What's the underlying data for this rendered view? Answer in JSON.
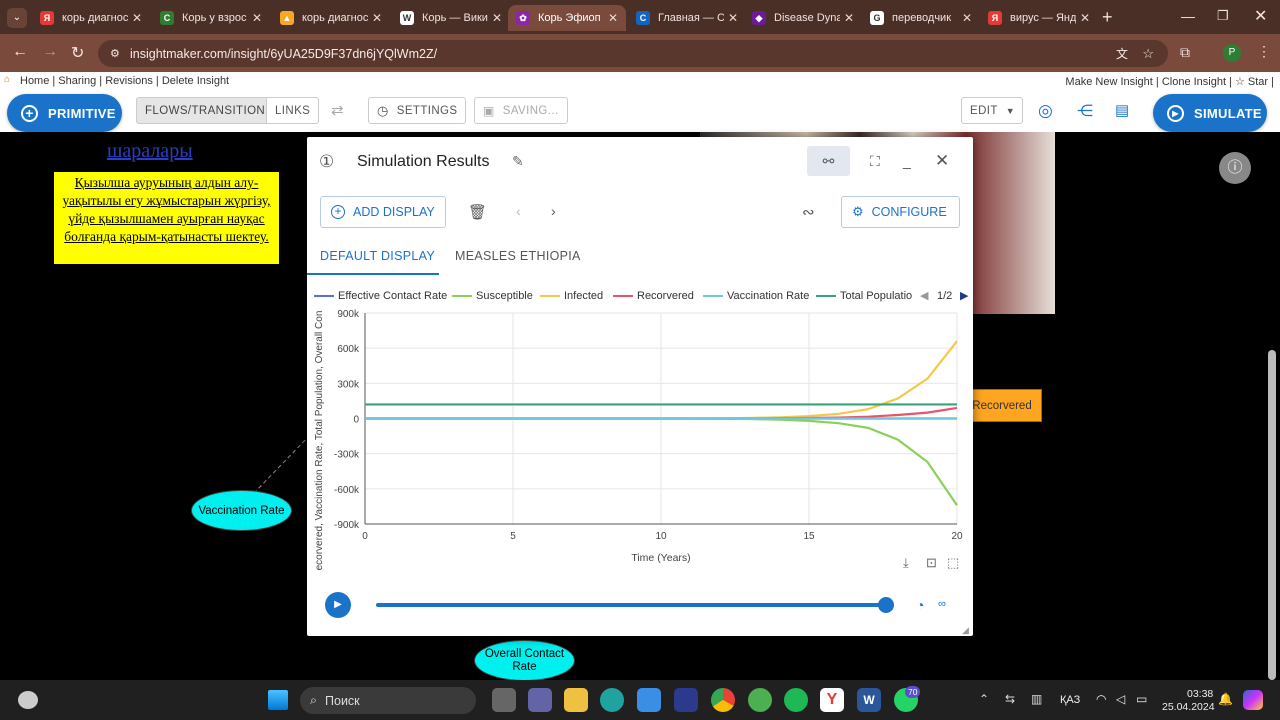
{
  "browser": {
    "tabs": [
      {
        "title": "корь диагнос",
        "fav_color": "#e53935",
        "fav_glyph": "Я"
      },
      {
        "title": "Корь у взрос",
        "fav_color": "#2e7d32",
        "fav_glyph": "C"
      },
      {
        "title": "корь диагнос",
        "fav_color": "#f9a825",
        "fav_glyph": "▲"
      },
      {
        "title": "Корь — Вики",
        "fav_color": "#ffffff",
        "fav_glyph": "W"
      },
      {
        "title": "Корь Эфиоп",
        "fav_color": "#8e24aa",
        "fav_glyph": "✿"
      },
      {
        "title": "Главная — С",
        "fav_color": "#1565c0",
        "fav_glyph": "C"
      },
      {
        "title": "Disease Dyna",
        "fav_color": "#6a1b9a",
        "fav_glyph": "◆"
      },
      {
        "title": "переводчик",
        "fav_color": "#ffffff",
        "fav_glyph": "G"
      },
      {
        "title": "вирус — Янд",
        "fav_color": "#e53935",
        "fav_glyph": "Я"
      }
    ],
    "url": "insightmaker.com/insight/6yUA25D9F37dn6jYQlWm2Z/",
    "profile_initial": "P"
  },
  "app": {
    "links_left": "Home | Sharing | Revisions | Delete Insight",
    "links_right": "Make New Insight | Clone Insight | ☆ Star |",
    "primitive_label": "PRIMITIVE",
    "flows_label": "FLOWS/TRANSITIONS",
    "links_label": "LINKS",
    "settings_label": "SETTINGS",
    "saving_label": "SAVING...",
    "edit_label": "EDIT",
    "simulate_label": "SIMULATE"
  },
  "canvas": {
    "heading_partial": "шаралары",
    "yellow_note": "Қызылша ауруының алдын алу-уақытылы егу жұмыстарын жүргізу, үйде қызылшамен ауырған науқас болғанда қарым-қатынасты шектеу.",
    "vaccination_node": "Vaccination Rate",
    "overall_node": "Overall Contact Rate",
    "recovered_node": "Recorvered"
  },
  "dialog": {
    "title": "Simulation Results",
    "add_display": "ADD DISPLAY",
    "configure": "CONFIGURE",
    "tabs": [
      "DEFAULT DISPLAY",
      "MEASLES ETHIOPIA"
    ],
    "legend_page": "1/2",
    "speed_label": "∞"
  },
  "chart_data": {
    "type": "line",
    "xlabel": "Time (Years)",
    "ylabel": "ecorvered, Vaccination Rate, Total Population, Overall Con",
    "xlim": [
      0,
      20
    ],
    "ylim": [
      -900000,
      900000
    ],
    "x_ticks": [
      "0",
      "5",
      "10",
      "15",
      "20"
    ],
    "y_ticks": [
      "900k",
      "600k",
      "300k",
      "0",
      "-300k",
      "-600k",
      "-900k"
    ],
    "x": [
      0,
      2,
      4,
      6,
      8,
      10,
      12,
      13,
      14,
      15,
      16,
      17,
      18,
      19,
      20
    ],
    "series": [
      {
        "name": "Effective Contact Rate",
        "color": "#5b6fd6",
        "values": [
          0,
          0,
          0,
          0,
          0,
          0,
          0,
          0,
          0,
          0,
          0,
          0,
          0,
          0,
          0
        ]
      },
      {
        "name": "Susceptible",
        "color": "#8ccf5a",
        "values": [
          0,
          0,
          0,
          0,
          0,
          0,
          -2000,
          -5000,
          -10000,
          -20000,
          -40000,
          -80000,
          -180000,
          -370000,
          -740000
        ]
      },
      {
        "name": "Infected",
        "color": "#f5c84c",
        "values": [
          0,
          0,
          0,
          0,
          0,
          0,
          2000,
          5000,
          10000,
          20000,
          40000,
          80000,
          170000,
          340000,
          660000
        ]
      },
      {
        "name": "Recorvered",
        "color": "#e8546a",
        "values": [
          0,
          0,
          0,
          0,
          0,
          0,
          0,
          1000,
          2000,
          4000,
          8000,
          15000,
          30000,
          50000,
          90000
        ]
      },
      {
        "name": "Vaccination Rate",
        "color": "#6ec8e0",
        "values": [
          0,
          0,
          0,
          0,
          0,
          0,
          0,
          0,
          0,
          0,
          0,
          0,
          0,
          0,
          0
        ]
      },
      {
        "name": "Total Populatio",
        "color": "#3aa37a",
        "values": [
          120000,
          120000,
          120000,
          120000,
          120000,
          120000,
          120000,
          120000,
          120000,
          120000,
          120000,
          120000,
          120000,
          120000,
          120000
        ]
      }
    ],
    "grid": true,
    "legend_position": "top"
  },
  "taskbar": {
    "search": "Поиск",
    "lang": "ҚАЗ",
    "time": "03:38",
    "date": "25.04.2024",
    "badge": "70"
  }
}
